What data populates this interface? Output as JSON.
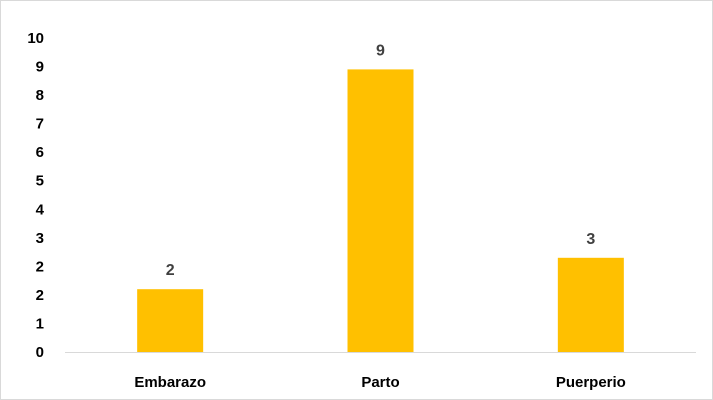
{
  "chart_data": {
    "type": "bar",
    "categories": [
      "Embarazo",
      "Parto",
      "Puerperio"
    ],
    "values": [
      2,
      9,
      3
    ],
    "data_labels": [
      "2",
      "9",
      "3"
    ],
    "y_tick_labels": [
      "0",
      "1",
      "2",
      "2",
      "3",
      "4",
      "5",
      "6",
      "7",
      "8",
      "9",
      "10"
    ],
    "ylim": [
      0,
      10
    ],
    "grid": false,
    "legend": "none",
    "colors": {
      "bar": "#FFC000",
      "axis": "#d9d9d9",
      "data_label": "#404040",
      "tick_label": "#000000"
    }
  }
}
